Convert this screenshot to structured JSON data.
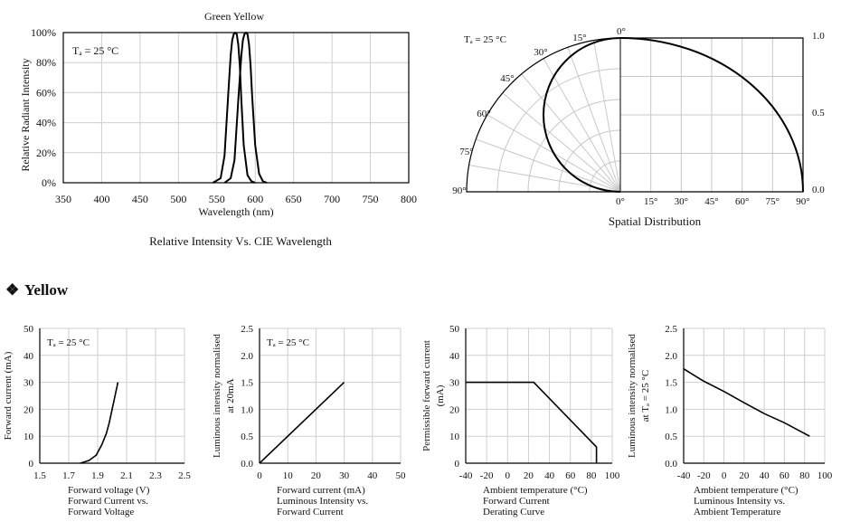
{
  "spectrum": {
    "title": "Green Yellow",
    "caption": "Relative Intensity Vs. CIE Wavelength",
    "ta": "Tₐ = 25 °C",
    "chart_data": {
      "type": "line",
      "title": "Green Yellow",
      "xlabel": "Wavelength (nm)",
      "ylabel": "Relative Radiant Intensity",
      "xlim": [
        350,
        800
      ],
      "ylim": [
        0,
        100
      ],
      "x_ticks": [
        350,
        400,
        450,
        500,
        550,
        600,
        650,
        700,
        750,
        800
      ],
      "y_ticks": [
        0,
        20,
        40,
        60,
        80,
        100
      ],
      "y_tick_labels": [
        "0%",
        "20%",
        "40%",
        "60%",
        "80%",
        "100%"
      ],
      "grid": true,
      "series": [
        {
          "x": [
            545,
            555,
            560,
            565,
            568,
            570,
            572,
            574,
            576,
            578,
            580,
            582,
            585,
            590,
            595,
            600
          ],
          "y": [
            0,
            3,
            18,
            60,
            85,
            95,
            99,
            100,
            99,
            92,
            78,
            55,
            25,
            5,
            1,
            0
          ]
        },
        {
          "x": [
            560,
            568,
            573,
            578,
            582,
            584,
            586,
            588,
            590,
            592,
            594,
            596,
            600,
            605,
            610,
            615
          ],
          "y": [
            0,
            3,
            15,
            55,
            85,
            95,
            99,
            100,
            99,
            92,
            78,
            58,
            25,
            6,
            1,
            0
          ]
        }
      ]
    }
  },
  "polar": {
    "caption": "Spatial Distribution",
    "ta": "Tₐ = 25 °C",
    "chart_data": {
      "type": "line",
      "title": "Spatial Distribution",
      "angle_labels": [
        "0°",
        "15°",
        "30°",
        "45°",
        "60°",
        "75°",
        "90°"
      ],
      "x_tick_labels": [
        "0°",
        "15°",
        "30°",
        "45°",
        "60°",
        "75°",
        "90°"
      ],
      "r_tick_labels": [
        "0.0",
        "0.5",
        "1.0"
      ],
      "rlim": [
        0,
        1
      ],
      "series": [
        {
          "angle_deg": [
            0,
            15,
            30,
            45,
            60,
            75,
            90
          ],
          "r": [
            1.0,
            0.97,
            0.88,
            0.73,
            0.5,
            0.26,
            0.0
          ]
        }
      ]
    }
  },
  "section": {
    "bullet": "❖",
    "title": "Yellow"
  },
  "charts": [
    {
      "type": "line",
      "ylabel": "Forward current (mA)",
      "xlabel": "Forward voltage (V)",
      "caption": [
        "Forward Current vs.",
        "Forward Voltage"
      ],
      "ta": "Tₐ = 25 °C",
      "xlim": [
        1.5,
        2.5
      ],
      "ylim": [
        0,
        50
      ],
      "x_ticks": [
        1.5,
        1.7,
        1.9,
        2.1,
        2.3,
        2.5
      ],
      "x_tick_labels": [
        "1.5",
        "1.7",
        "1.9",
        "2.1",
        "2.3",
        "2.5"
      ],
      "y_ticks": [
        0,
        10,
        20,
        30,
        40,
        50
      ],
      "y_tick_labels": [
        "0",
        "10",
        "20",
        "30",
        "40",
        "50"
      ],
      "series": [
        {
          "x": [
            1.78,
            1.84,
            1.89,
            1.93,
            1.96,
            1.98,
            2.0,
            2.02,
            2.04
          ],
          "y": [
            0,
            1,
            3,
            7,
            11,
            15,
            20,
            25,
            30
          ]
        }
      ]
    },
    {
      "type": "line",
      "ylabel": "Luminous intensity normalised",
      "ylabel2": "at 20mA",
      "xlabel": "Forward current (mA)",
      "caption": [
        "Luminous Intensity vs.",
        "Forward Current"
      ],
      "ta": "Tₐ = 25 °C",
      "xlim": [
        0,
        50
      ],
      "ylim": [
        0,
        2.5
      ],
      "x_ticks": [
        0,
        10,
        20,
        30,
        40,
        50
      ],
      "x_tick_labels": [
        "0",
        "10",
        "20",
        "30",
        "40",
        "50"
      ],
      "y_ticks": [
        0,
        0.5,
        1.0,
        1.5,
        2.0,
        2.5
      ],
      "y_tick_labels": [
        "0.0",
        "0.5",
        "1.0",
        "1.5",
        "2.0",
        "2.5"
      ],
      "series": [
        {
          "x": [
            0,
            30
          ],
          "y": [
            0,
            1.5
          ]
        }
      ]
    },
    {
      "type": "line",
      "ylabel": "Permissible forward current",
      "ylabel2": "(mA)",
      "xlabel": "Ambient temperature (°C)",
      "caption": [
        "Forward Current",
        "Derating  Curve"
      ],
      "xlim": [
        -40,
        100
      ],
      "ylim": [
        0,
        50
      ],
      "x_ticks": [
        -40,
        -20,
        0,
        20,
        40,
        60,
        80,
        100
      ],
      "x_tick_labels": [
        "-40",
        "-20",
        "0",
        "20",
        "40",
        "60",
        "80",
        "100"
      ],
      "y_ticks": [
        0,
        10,
        20,
        30,
        40,
        50
      ],
      "y_tick_labels": [
        "0",
        "10",
        "20",
        "30",
        "40",
        "50"
      ],
      "series": [
        {
          "x": [
            -40,
            25,
            85,
            85
          ],
          "y": [
            30,
            30,
            6,
            0
          ]
        }
      ]
    },
    {
      "type": "line",
      "ylabel": "Luminous intensity normalised",
      "ylabel2": "at Tₐ = 25 °C",
      "xlabel": "Ambient temperature (°C)",
      "caption": [
        "Luminous Intensity vs.",
        "Ambient Temperature"
      ],
      "xlim": [
        -40,
        100
      ],
      "ylim": [
        0,
        2.5
      ],
      "x_ticks": [
        -40,
        -20,
        0,
        20,
        40,
        60,
        80,
        100
      ],
      "x_tick_labels": [
        "-40",
        "-20",
        "0",
        "20",
        "40",
        "60",
        "80",
        "100"
      ],
      "y_ticks": [
        0,
        0.5,
        1.0,
        1.5,
        2.0,
        2.5
      ],
      "y_tick_labels": [
        "0.0",
        "0.5",
        "1.0",
        "1.5",
        "2.0",
        "2.5"
      ],
      "series": [
        {
          "x": [
            -40,
            -20,
            0,
            20,
            40,
            60,
            85
          ],
          "y": [
            1.75,
            1.52,
            1.33,
            1.12,
            0.92,
            0.75,
            0.5
          ]
        }
      ]
    }
  ]
}
